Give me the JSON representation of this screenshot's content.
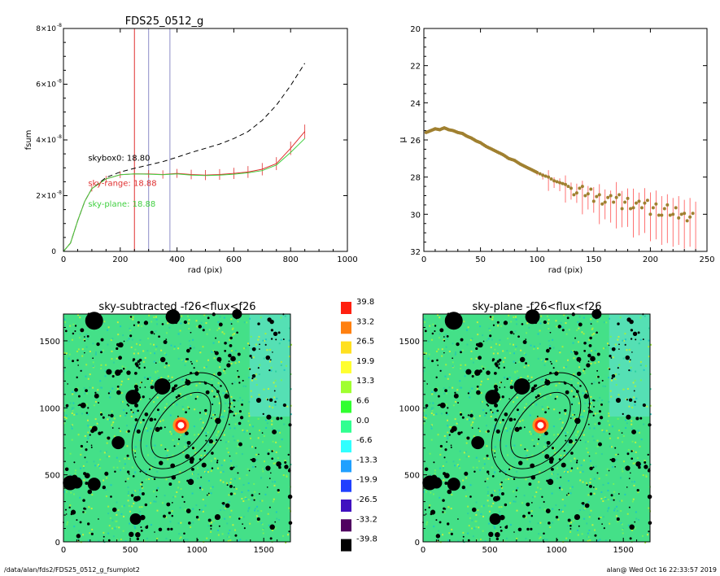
{
  "footer": {
    "left": "/data/alan/fds2/FDS25_0512_g_fsumplot2",
    "right": "alan@  Wed Oct 16 22:33:57 2019"
  },
  "chart_data": [
    {
      "type": "line",
      "title": "FDS25_0512_g",
      "xlabel": "rad (pix)",
      "ylabel": "fsum",
      "xlim": [
        0,
        1000
      ],
      "ylim": [
        0,
        8e-08
      ],
      "x_ticks": [
        "0",
        "200",
        "400",
        "600",
        "800",
        "1000"
      ],
      "y_ticks": [
        {
          "mant": "0",
          "exp": ""
        },
        {
          "mant": "2×10",
          "exp": "-8"
        },
        {
          "mant": "4×10",
          "exp": "-8"
        },
        {
          "mant": "6×10",
          "exp": "-8"
        },
        {
          "mant": "8×10",
          "exp": "-8"
        }
      ],
      "vlines": [
        {
          "x": 250,
          "color": "#e03030"
        },
        {
          "x": 300,
          "color": "#8c8cc8"
        },
        {
          "x": 375,
          "color": "#8c8cc8"
        }
      ],
      "annotations": [
        {
          "text": "skybox0: 18.80",
          "color": "#000000",
          "x": 150,
          "y": 3.25e-08
        },
        {
          "text": "sky-range: 18.88",
          "color": "#e03030",
          "x": 150,
          "y": 2.35e-08
        },
        {
          "text": "sky-plane: 18.88",
          "color": "#40d040",
          "x": 150,
          "y": 1.6e-08
        }
      ],
      "series": [
        {
          "color": "#000000",
          "dash": "6,4",
          "x": [
            0,
            25,
            50,
            75,
            100,
            150,
            200,
            250,
            300,
            350,
            400,
            450,
            500,
            550,
            600,
            650,
            700,
            750,
            800,
            850
          ],
          "y": [
            0,
            3e-09,
            1.1e-08,
            1.8e-08,
            2.25e-08,
            2.65e-08,
            2.85e-08,
            2.98e-08,
            3.1e-08,
            3.22e-08,
            3.38e-08,
            3.55e-08,
            3.7e-08,
            3.85e-08,
            4.05e-08,
            4.3e-08,
            4.7e-08,
            5.25e-08,
            5.95e-08,
            6.75e-08
          ]
        },
        {
          "color": "#e03030",
          "errorbars": true,
          "x": [
            0,
            25,
            50,
            75,
            100,
            150,
            200,
            250,
            300,
            350,
            400,
            450,
            500,
            550,
            600,
            650,
            700,
            750,
            800,
            850
          ],
          "y": [
            0,
            3e-09,
            1.1e-08,
            1.8e-08,
            2.25e-08,
            2.6e-08,
            2.75e-08,
            2.78e-08,
            2.78e-08,
            2.76e-08,
            2.8e-08,
            2.76e-08,
            2.74e-08,
            2.76e-08,
            2.8e-08,
            2.85e-08,
            2.95e-08,
            3.15e-08,
            3.7e-08,
            4.3e-08
          ]
        },
        {
          "color": "#40d040",
          "x": [
            0,
            25,
            50,
            75,
            100,
            150,
            200,
            250,
            300,
            350,
            400,
            450,
            500,
            550,
            600,
            650,
            700,
            750,
            800,
            850
          ],
          "y": [
            0,
            3e-09,
            1.1e-08,
            1.8e-08,
            2.25e-08,
            2.6e-08,
            2.75e-08,
            2.78e-08,
            2.77e-08,
            2.75e-08,
            2.78e-08,
            2.74e-08,
            2.72e-08,
            2.74e-08,
            2.77e-08,
            2.82e-08,
            2.9e-08,
            3.1e-08,
            3.55e-08,
            4.05e-08
          ]
        }
      ]
    },
    {
      "type": "scatter",
      "title": "",
      "xlabel": "rad (pix)",
      "ylabel": "μ",
      "xlim": [
        0,
        250
      ],
      "ylim": [
        32,
        20
      ],
      "y_inverted": true,
      "x_ticks": [
        "0",
        "50",
        "100",
        "150",
        "200",
        "250"
      ],
      "y_ticks": [
        "20",
        "22",
        "24",
        "26",
        "28",
        "30",
        "32"
      ],
      "series": [
        {
          "color": "#a08030",
          "x": [
            2,
            6,
            10,
            14,
            18,
            22,
            26,
            30,
            34,
            38,
            42,
            46,
            50,
            55,
            60,
            65,
            70,
            75,
            80,
            85,
            90,
            95,
            100,
            105,
            110,
            115,
            120,
            125,
            130,
            135,
            140,
            145,
            150,
            155,
            160,
            165,
            170,
            175,
            180,
            185,
            190,
            195,
            200,
            205,
            210,
            215,
            220,
            225,
            230,
            235,
            240
          ],
          "y": [
            25.6,
            25.5,
            25.4,
            25.45,
            25.35,
            25.45,
            25.5,
            25.6,
            25.65,
            25.8,
            25.9,
            26.05,
            26.15,
            26.35,
            26.5,
            26.65,
            26.8,
            27.0,
            27.1,
            27.3,
            27.45,
            27.6,
            27.75,
            27.9,
            28.0,
            28.2,
            28.3,
            28.4,
            28.6,
            28.7,
            28.8,
            28.9,
            29.0,
            29.1,
            29.2,
            29.3,
            29.1,
            29.4,
            29.3,
            29.5,
            29.6,
            29.4,
            29.7,
            29.6,
            29.9,
            29.8,
            30.0,
            29.9,
            30.1,
            30.0,
            30.2
          ]
        }
      ]
    },
    {
      "type": "heatmap",
      "title": "sky-subtracted -f26<flux<f26",
      "xlim": [
        0,
        1700
      ],
      "ylim": [
        0,
        1700
      ],
      "x_ticks": [
        "0",
        "500",
        "1000",
        "1500"
      ],
      "y_ticks": [
        "0",
        "500",
        "1000",
        "1500"
      ],
      "center": [
        880,
        870
      ]
    },
    {
      "type": "heatmap",
      "title": "sky-plane -f26<flux<f26",
      "xlim": [
        0,
        1700
      ],
      "ylim": [
        0,
        1700
      ],
      "x_ticks": [
        "0",
        "500",
        "1000",
        "1500"
      ],
      "y_ticks": [
        "0",
        "500",
        "1000",
        "1500"
      ],
      "center": [
        880,
        870
      ]
    }
  ],
  "colorbar": {
    "entries": [
      {
        "label": "39.8",
        "color": "#ff2010"
      },
      {
        "label": "33.2",
        "color": "#ff8010"
      },
      {
        "label": "26.5",
        "color": "#ffe020"
      },
      {
        "label": "19.9",
        "color": "#ffff30"
      },
      {
        "label": "13.3",
        "color": "#a0ff30"
      },
      {
        "label": "6.6",
        "color": "#30ff30"
      },
      {
        "label": "0.0",
        "color": "#30ff90"
      },
      {
        "label": "-6.6",
        "color": "#30ffff"
      },
      {
        "label": "-13.3",
        "color": "#20a0ff"
      },
      {
        "label": "-19.9",
        "color": "#2040ff"
      },
      {
        "label": "-26.5",
        "color": "#4010c0"
      },
      {
        "label": "-33.2",
        "color": "#500060"
      },
      {
        "label": "-39.8",
        "color": "#000000"
      }
    ]
  }
}
